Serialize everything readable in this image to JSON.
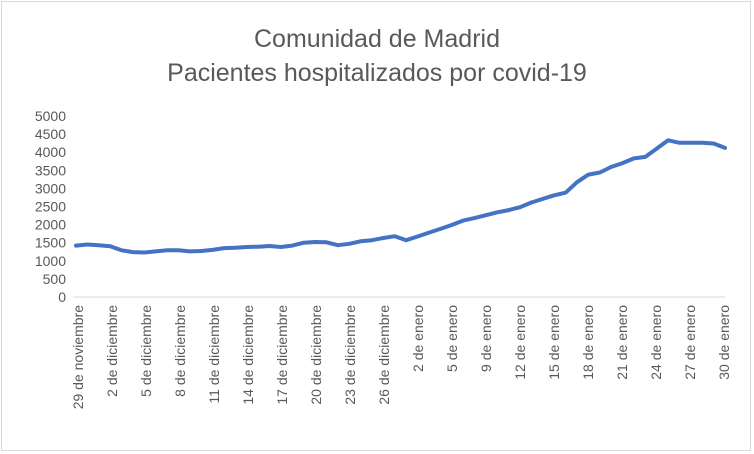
{
  "chart_data": {
    "type": "line",
    "title_line1": "Comunidad de Madrid",
    "title_line2": "Pacientes hospitalizados por covid-19",
    "xlabel": "",
    "ylabel": "",
    "ylim": [
      0,
      5000
    ],
    "yticks": [
      0,
      500,
      1000,
      1500,
      2000,
      2500,
      3000,
      3500,
      4000,
      4500,
      5000
    ],
    "x_tick_labels": [
      "29 de noviembre",
      "2 de diciembre",
      "5 de diciembre",
      "8 de diciembre",
      "11 de diciembre",
      "14 de diciembre",
      "17 de diciembre",
      "20 de diciembre",
      "23 de diciembre",
      "26 de diciembre",
      "2 de enero",
      "5 de enero",
      "9 de enero",
      "12 de enero",
      "15 de enero",
      "18 de enero",
      "21 de enero",
      "24 de enero",
      "27 de enero",
      "30 de enero"
    ],
    "grid": false,
    "legend": "none",
    "color": "#4472c4",
    "series": [
      {
        "values": [
          1420,
          1450,
          1430,
          1400,
          1290,
          1240,
          1230,
          1260,
          1290,
          1290,
          1260,
          1270,
          1300,
          1350,
          1360,
          1380,
          1390,
          1410,
          1380,
          1420,
          1500,
          1520,
          1510,
          1430,
          1470,
          1540,
          1570,
          1630,
          1680,
          1570,
          1670,
          1780,
          1880,
          1990,
          2110,
          2180,
          2260,
          2340,
          2400,
          2480,
          2610,
          2710,
          2810,
          2880,
          3170,
          3380,
          3440,
          3590,
          3700,
          3830,
          3870,
          4100,
          4330,
          4260,
          4260,
          4260,
          4240,
          4120
        ]
      }
    ]
  }
}
